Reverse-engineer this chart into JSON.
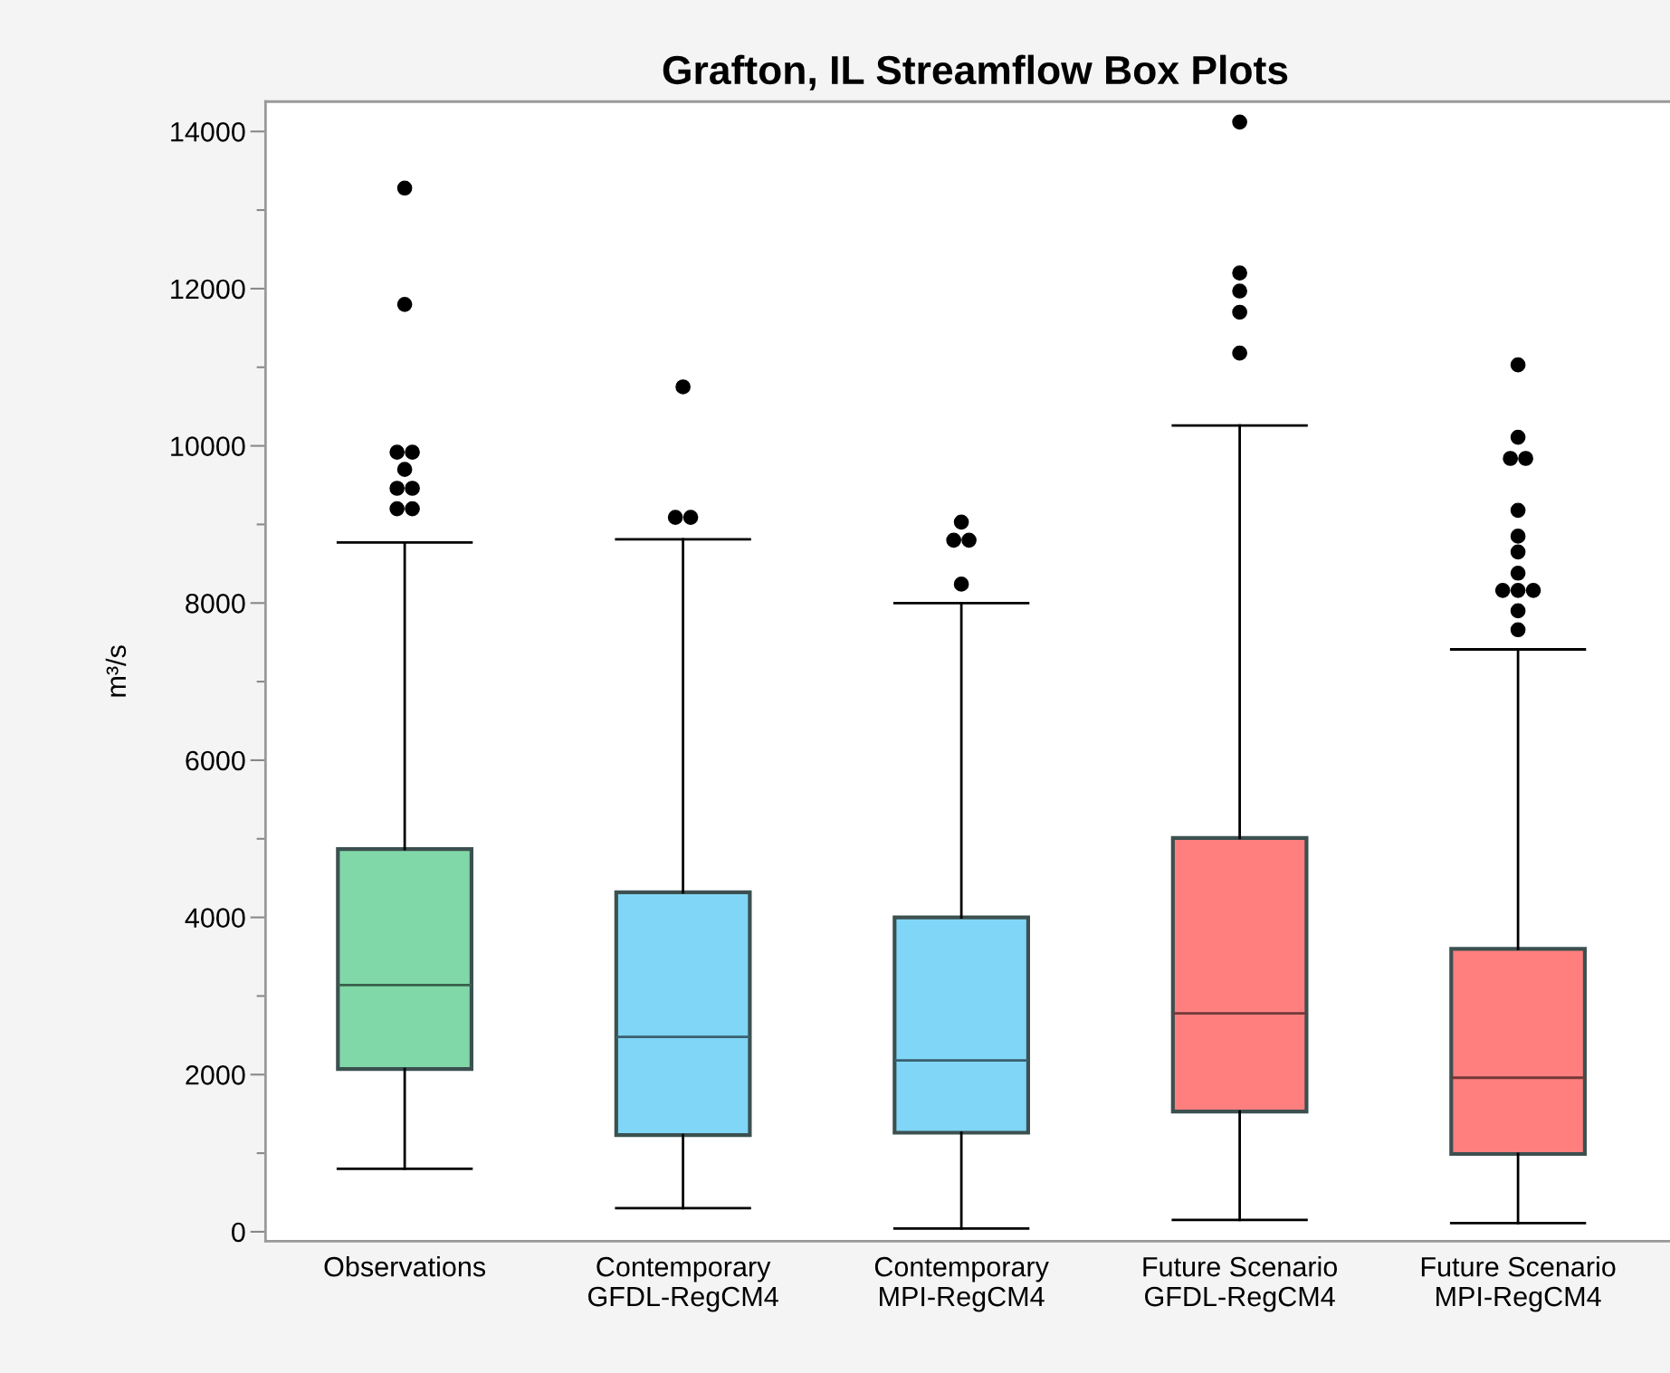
{
  "chart_data": {
    "type": "box",
    "title": "Grafton, IL Streamflow Box Plots",
    "ylabel": "m³/s",
    "categories": [
      "Observations",
      "Contemporary\nGFDL-RegCM4",
      "Contemporary\nMPI-RegCM4",
      "Future Scenario\nGFDL-RegCM4",
      "Future Scenario\nMPI-RegCM4"
    ],
    "colors": [
      "#80d8a8",
      "#80d6f6",
      "#80d6f6",
      "#ff7f7f",
      "#ff7f7f"
    ],
    "boxes": [
      {
        "low": 800,
        "q1": 2070,
        "median": 3140,
        "q3": 4870,
        "high": 8770,
        "outliers": [
          9200,
          9200,
          9460,
          9460,
          9700,
          9920,
          9920,
          11800,
          13280
        ]
      },
      {
        "low": 300,
        "q1": 1230,
        "median": 2480,
        "q3": 4320,
        "high": 8810,
        "outliers": [
          9090,
          9090,
          10750
        ]
      },
      {
        "low": 40,
        "q1": 1260,
        "median": 2180,
        "q3": 4000,
        "high": 8000,
        "outliers": [
          8240,
          8800,
          8800,
          9030
        ]
      },
      {
        "low": 150,
        "q1": 1530,
        "median": 2780,
        "q3": 5010,
        "high": 10260,
        "outliers": [
          11180,
          11700,
          11970,
          12200,
          14120
        ]
      },
      {
        "low": 110,
        "q1": 990,
        "median": 1960,
        "q3": 3600,
        "high": 7410,
        "outliers": [
          7660,
          7900,
          8160,
          8160,
          8160,
          8380,
          8650,
          8850,
          9180,
          9840,
          9840,
          10110,
          11030
        ]
      }
    ],
    "ylim": [
      -120,
      14380
    ],
    "yticks": [
      0,
      2000,
      4000,
      6000,
      8000,
      10000,
      12000,
      14000
    ],
    "grid": false
  }
}
